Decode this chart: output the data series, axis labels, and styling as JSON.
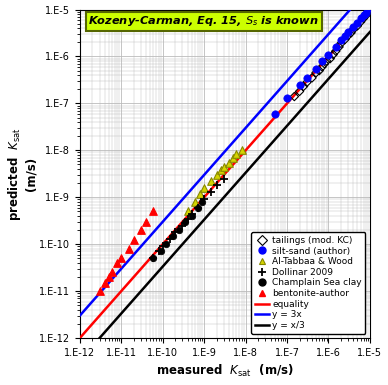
{
  "title": "Kozeny-Carman, Eq. 15, $S_s$ is known",
  "xlabel": "measured  $K_{\\mathrm{sat}}$  (m/s)",
  "ylabel": "predicted  $K_{\\mathrm{sat}}$\n(m/s)",
  "xlim_log": [
    -12,
    -5
  ],
  "ylim_log": [
    -12,
    -5
  ],
  "tailings": {
    "x": [
      1.5e-07,
      2e-07,
      2.5e-07,
      3e-07,
      4e-07,
      5e-07,
      6e-07,
      7e-07,
      8e-07,
      9e-07,
      1.1e-06,
      1.3e-06,
      1.5e-06,
      1.8e-06,
      2e-06,
      2.5e-06,
      3e-06,
      3.5e-06,
      4e-06,
      5e-06,
      6e-06,
      7e-06,
      8e-06,
      1e-05
    ],
    "y": [
      1.4e-07,
      1.8e-07,
      2.3e-07,
      2.8e-07,
      3.5e-07,
      4.5e-07,
      5e-07,
      6e-07,
      7e-07,
      8e-07,
      9e-07,
      1.1e-06,
      1.3e-06,
      1.6e-06,
      1.9e-06,
      2.3e-06,
      2.8e-06,
      3.2e-06,
      3.8e-06,
      4.5e-06,
      5.5e-06,
      6.5e-06,
      7.5e-06,
      9e-06
    ],
    "marker": "D",
    "facecolor": "none",
    "edgecolor": "black",
    "size": 18,
    "lw": 0.8,
    "label": "tailings (mod. KC)"
  },
  "silt_sand": {
    "x": [
      5e-08,
      1e-07,
      2e-07,
      3e-07,
      5e-07,
      7e-07,
      1e-06,
      1.5e-06,
      2e-06,
      2.5e-06,
      3e-06,
      4e-06,
      5e-06,
      6e-06,
      7e-06,
      8e-06,
      1e-05
    ],
    "y": [
      6e-08,
      1.3e-07,
      2.5e-07,
      3.5e-07,
      5.5e-07,
      8e-07,
      1.1e-06,
      1.6e-06,
      2.2e-06,
      2.8e-06,
      3.3e-06,
      4.2e-06,
      5.2e-06,
      6.5e-06,
      7.5e-06,
      8.5e-06,
      1.1e-05
    ],
    "marker": "o",
    "facecolor": "blue",
    "edgecolor": "blue",
    "size": 28,
    "lw": 0.5,
    "label": "silt-sand (author)"
  },
  "altabbaa": {
    "x": [
      4e-10,
      6e-10,
      8e-10,
      1e-09,
      1.5e-09,
      2e-09,
      2.5e-09,
      3e-09,
      4e-09,
      5e-09,
      6e-09,
      8e-09
    ],
    "y": [
      5e-10,
      8e-10,
      1.2e-09,
      1.6e-09,
      2.2e-09,
      3e-09,
      3.8e-09,
      4.5e-09,
      5.5e-09,
      7e-09,
      8.5e-09,
      1e-08
    ],
    "marker": "^",
    "facecolor": "#d4d400",
    "edgecolor": "#888800",
    "size": 30,
    "lw": 0.8,
    "label": "Al-Tabbaa & Wood"
  },
  "dollinar": {
    "x": [
      6e-11,
      8e-11,
      1e-10,
      1.5e-10,
      2e-10,
      3e-10,
      4e-10,
      5e-10,
      7e-10,
      1e-09,
      1.5e-09,
      2e-09,
      3e-09
    ],
    "y": [
      5e-11,
      7e-11,
      9e-11,
      1.3e-10,
      1.8e-10,
      2.5e-10,
      3.5e-10,
      4.5e-10,
      6e-10,
      9e-10,
      1.3e-09,
      1.8e-09,
      2.5e-09
    ],
    "marker": "+",
    "facecolor": "black",
    "edgecolor": "black",
    "size": 35,
    "lw": 1.3,
    "label": "Dollinar 2009"
  },
  "champlain": {
    "x": [
      6e-11,
      9e-11,
      1.2e-10,
      1.8e-10,
      2.5e-10,
      3.5e-10,
      5e-10,
      7e-10,
      9e-10
    ],
    "y": [
      5e-11,
      7e-11,
      1e-10,
      1.5e-10,
      2e-10,
      3e-10,
      4e-10,
      6e-10,
      8e-10
    ],
    "marker": "o",
    "facecolor": "black",
    "edgecolor": "black",
    "size": 22,
    "lw": 0.5,
    "label": "Champlain Sea clay"
  },
  "bentonite": {
    "x": [
      3e-12,
      4e-12,
      5e-12,
      6e-12,
      8e-12,
      1e-11,
      1.5e-11,
      2e-11,
      3e-11,
      4e-11,
      6e-11
    ],
    "y": [
      1e-11,
      1.5e-11,
      2e-11,
      2.5e-11,
      4e-11,
      5e-11,
      8e-11,
      1.2e-10,
      2e-10,
      3e-10,
      5e-10
    ],
    "marker": "^",
    "facecolor": "red",
    "edgecolor": "red",
    "size": 30,
    "lw": 0.8,
    "label": "bentonite-author"
  },
  "title_box_color": "#ccff00",
  "title_box_edge": "#556600",
  "grid_color": "#bbbbbb",
  "bg_color": "white"
}
